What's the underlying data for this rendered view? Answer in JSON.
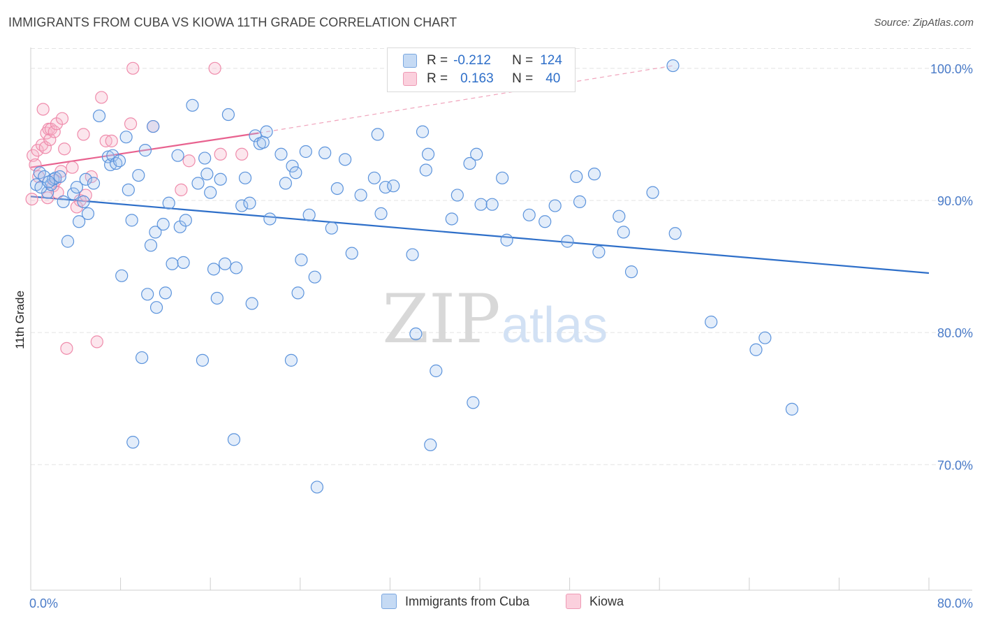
{
  "header": {
    "title": "IMMIGRANTS FROM CUBA VS KIOWA 11TH GRADE CORRELATION CHART",
    "source": "Source: ZipAtlas.com"
  },
  "watermark": {
    "zip": "ZIP",
    "atlas": "atlas"
  },
  "legend": {
    "rows": [
      {
        "r_label": "R =",
        "r_value": "-0.212",
        "n_label": "N =",
        "n_value": "124",
        "color": "#a9c8ef"
      },
      {
        "r_label": "R =",
        "r_value": "0.163",
        "n_label": "N =",
        "n_value": "40",
        "color": "#f7b8cb"
      }
    ]
  },
  "bottom_legend": [
    {
      "label": "Immigrants from Cuba",
      "color": "#a9c8ef"
    },
    {
      "label": "Kiowa",
      "color": "#f7b8cb"
    }
  ],
  "colors": {
    "blue": "#5b93dc",
    "blue_fill": "#a9c8ef",
    "pink": "#ef8bab",
    "pink_fill": "#f7b8cb",
    "blue_line": "#2e6fc9",
    "pink_line": "#e8628f"
  },
  "chart_data": {
    "type": "scatter",
    "title": "IMMIGRANTS FROM CUBA VS KIOWA 11TH GRADE CORRELATION CHART",
    "xlabel": "",
    "ylabel": "11th Grade",
    "xlim": [
      0,
      80
    ],
    "ylim": [
      60.5,
      102
    ],
    "x_tick_labels": [
      "0.0%",
      "80.0%"
    ],
    "y_ticks": [
      70,
      80,
      90,
      100
    ],
    "y_tick_labels": [
      "70.0%",
      "80.0%",
      "90.0%",
      "100.0%"
    ],
    "grid": "horizontal dashed",
    "legend_position": "top-center",
    "series": [
      {
        "name": "Immigrants from Cuba",
        "r": -0.212,
        "n": 124,
        "trend": {
          "x": [
            0,
            80
          ],
          "y": [
            90.3,
            84.5
          ]
        },
        "points": [
          [
            0.5,
            91.2
          ],
          [
            0.8,
            92.1
          ],
          [
            1.2,
            91.8
          ],
          [
            1.5,
            90.6
          ],
          [
            1.8,
            91.2
          ],
          [
            2.0,
            91.6
          ],
          [
            2.2,
            91.7
          ],
          [
            2.9,
            89.9
          ],
          [
            3.3,
            86.9
          ],
          [
            3.8,
            90.5
          ],
          [
            4.1,
            91.0
          ],
          [
            4.3,
            88.4
          ],
          [
            4.7,
            89.9
          ],
          [
            4.9,
            91.6
          ],
          [
            5.1,
            89.0
          ],
          [
            5.6,
            91.3
          ],
          [
            6.1,
            96.4
          ],
          [
            6.9,
            93.3
          ],
          [
            7.1,
            92.7
          ],
          [
            7.3,
            93.4
          ],
          [
            7.6,
            92.8
          ],
          [
            7.9,
            93.0
          ],
          [
            8.1,
            84.3
          ],
          [
            8.5,
            94.8
          ],
          [
            8.7,
            90.8
          ],
          [
            9.0,
            88.5
          ],
          [
            9.6,
            91.9
          ],
          [
            9.9,
            78.1
          ],
          [
            10.2,
            93.8
          ],
          [
            10.4,
            82.9
          ],
          [
            10.7,
            86.6
          ],
          [
            10.9,
            95.6
          ],
          [
            11.1,
            87.6
          ],
          [
            11.2,
            81.9
          ],
          [
            11.8,
            88.2
          ],
          [
            12.0,
            83.0
          ],
          [
            12.3,
            89.8
          ],
          [
            12.6,
            85.2
          ],
          [
            13.1,
            93.4
          ],
          [
            13.3,
            88.0
          ],
          [
            13.6,
            85.3
          ],
          [
            13.8,
            88.5
          ],
          [
            14.4,
            97.2
          ],
          [
            14.9,
            91.3
          ],
          [
            15.3,
            77.9
          ],
          [
            15.5,
            93.2
          ],
          [
            15.7,
            92.0
          ],
          [
            16.0,
            90.6
          ],
          [
            16.3,
            84.8
          ],
          [
            16.6,
            82.6
          ],
          [
            16.9,
            91.6
          ],
          [
            17.3,
            85.2
          ],
          [
            17.6,
            96.5
          ],
          [
            18.3,
            84.9
          ],
          [
            18.8,
            89.6
          ],
          [
            19.1,
            91.7
          ],
          [
            19.5,
            89.8
          ],
          [
            19.7,
            82.2
          ],
          [
            20.0,
            94.9
          ],
          [
            20.4,
            94.3
          ],
          [
            20.7,
            94.4
          ],
          [
            21.0,
            95.2
          ],
          [
            21.3,
            88.6
          ],
          [
            22.3,
            93.5
          ],
          [
            22.7,
            91.3
          ],
          [
            23.2,
            77.9
          ],
          [
            23.3,
            92.6
          ],
          [
            23.6,
            92.1
          ],
          [
            23.8,
            83.0
          ],
          [
            24.1,
            85.5
          ],
          [
            24.5,
            93.7
          ],
          [
            24.8,
            88.9
          ],
          [
            25.3,
            84.2
          ],
          [
            26.2,
            93.6
          ],
          [
            26.8,
            87.9
          ],
          [
            27.3,
            90.9
          ],
          [
            28.0,
            93.1
          ],
          [
            28.6,
            86.0
          ],
          [
            29.4,
            90.4
          ],
          [
            30.6,
            91.7
          ],
          [
            30.9,
            95.0
          ],
          [
            31.2,
            89.0
          ],
          [
            31.6,
            91.0
          ],
          [
            32.3,
            91.1
          ],
          [
            34.0,
            85.9
          ],
          [
            34.3,
            79.9
          ],
          [
            34.9,
            95.2
          ],
          [
            35.2,
            92.3
          ],
          [
            35.4,
            93.5
          ],
          [
            35.6,
            71.5
          ],
          [
            36.1,
            77.1
          ],
          [
            37.5,
            88.6
          ],
          [
            38.0,
            90.4
          ],
          [
            39.1,
            92.8
          ],
          [
            39.4,
            74.7
          ],
          [
            39.7,
            93.5
          ],
          [
            40.1,
            89.7
          ],
          [
            41.1,
            89.7
          ],
          [
            42.0,
            91.7
          ],
          [
            42.4,
            87.0
          ],
          [
            44.4,
            88.9
          ],
          [
            45.8,
            88.4
          ],
          [
            46.7,
            89.6
          ],
          [
            47.8,
            86.9
          ],
          [
            48.6,
            91.8
          ],
          [
            48.9,
            89.9
          ],
          [
            50.2,
            92.0
          ],
          [
            50.6,
            86.1
          ],
          [
            52.4,
            88.8
          ],
          [
            52.8,
            87.6
          ],
          [
            53.5,
            84.6
          ],
          [
            55.4,
            90.6
          ],
          [
            57.2,
            100.2
          ],
          [
            57.4,
            87.5
          ],
          [
            60.6,
            80.8
          ],
          [
            64.6,
            78.7
          ],
          [
            65.4,
            79.6
          ],
          [
            67.8,
            74.2
          ],
          [
            9.1,
            71.7
          ],
          [
            18.1,
            71.9
          ],
          [
            25.5,
            68.3
          ],
          [
            0.9,
            91.0
          ],
          [
            1.6,
            91.4
          ],
          [
            2.6,
            91.8
          ]
        ]
      },
      {
        "name": "Kiowa",
        "r": 0.163,
        "n": 40,
        "trend": {
          "x": [
            0,
            20.3
          ],
          "y": [
            92.5,
            95.1
          ]
        },
        "trend_extension": {
          "x": [
            20.3,
            57.2
          ],
          "y": [
            95.1,
            100.2
          ]
        },
        "points": [
          [
            0.1,
            90.1
          ],
          [
            0.2,
            93.4
          ],
          [
            0.4,
            92.7
          ],
          [
            0.6,
            93.8
          ],
          [
            0.7,
            91.8
          ],
          [
            1.0,
            94.2
          ],
          [
            1.1,
            96.9
          ],
          [
            1.3,
            94.0
          ],
          [
            1.4,
            95.1
          ],
          [
            1.5,
            90.2
          ],
          [
            1.6,
            95.4
          ],
          [
            1.7,
            94.6
          ],
          [
            1.8,
            95.4
          ],
          [
            2.0,
            91.1
          ],
          [
            2.1,
            95.2
          ],
          [
            2.2,
            91.5
          ],
          [
            2.3,
            95.8
          ],
          [
            2.4,
            90.6
          ],
          [
            2.8,
            96.2
          ],
          [
            3.0,
            93.9
          ],
          [
            3.2,
            78.8
          ],
          [
            3.7,
            92.5
          ],
          [
            4.1,
            89.5
          ],
          [
            4.4,
            90.0
          ],
          [
            4.7,
            95.0
          ],
          [
            4.9,
            90.4
          ],
          [
            5.4,
            91.8
          ],
          [
            5.9,
            79.3
          ],
          [
            6.3,
            97.8
          ],
          [
            6.7,
            94.5
          ],
          [
            7.2,
            94.5
          ],
          [
            8.9,
            95.8
          ],
          [
            9.1,
            100.0
          ],
          [
            10.9,
            95.6
          ],
          [
            13.4,
            90.8
          ],
          [
            14.1,
            93.0
          ],
          [
            16.4,
            100.0
          ],
          [
            16.9,
            93.5
          ],
          [
            18.8,
            93.5
          ],
          [
            2.7,
            92.2
          ]
        ]
      }
    ]
  }
}
